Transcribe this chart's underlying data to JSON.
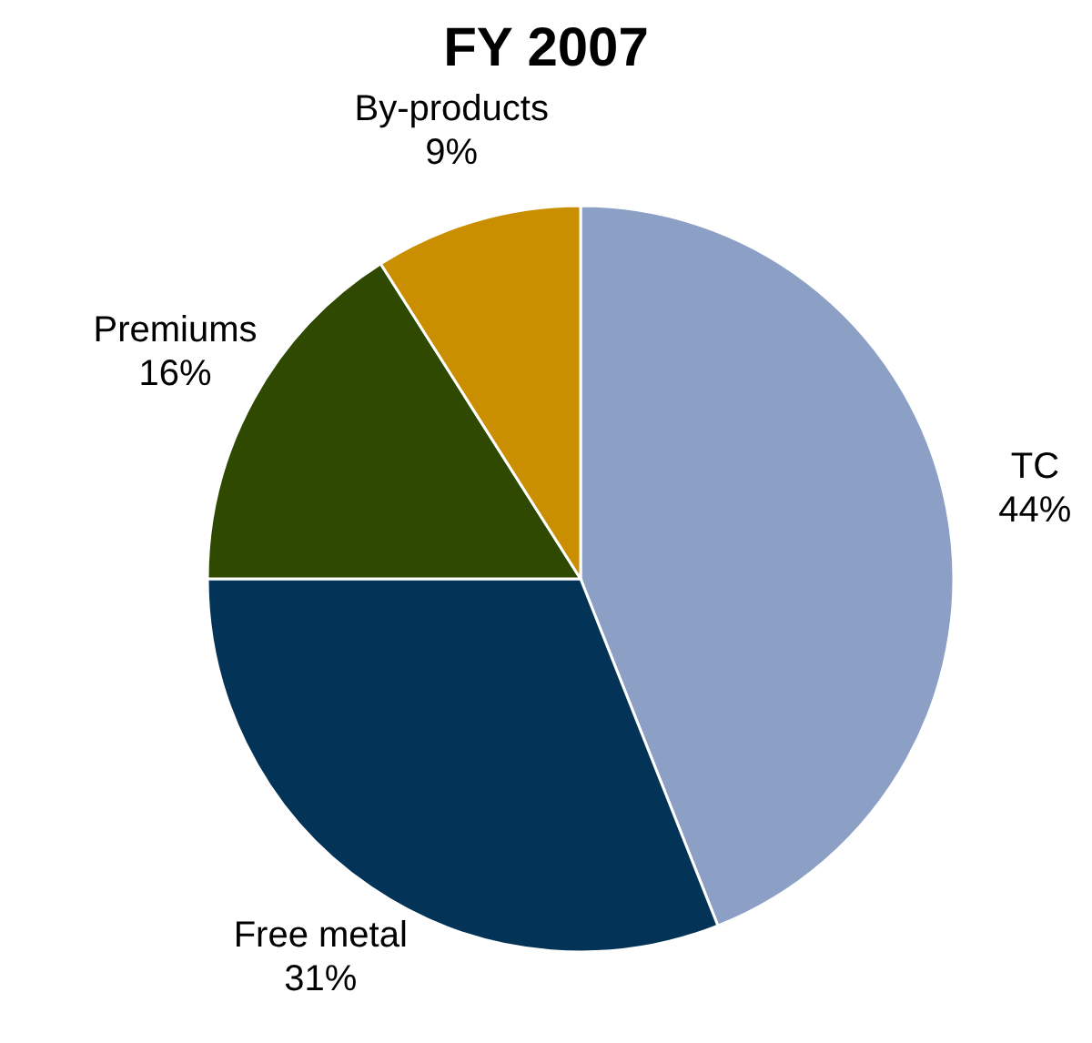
{
  "chart_data": {
    "type": "pie",
    "title": "FY 2007",
    "categories": [
      "TC",
      "Free metal",
      "Premiums",
      "By-products"
    ],
    "values": [
      44,
      31,
      16,
      9
    ],
    "value_labels": [
      "44%",
      "31%",
      "16%",
      "9%"
    ],
    "colors": [
      "#8c9fc4",
      "#033356",
      "#2f4a00",
      "#c98f00"
    ]
  }
}
